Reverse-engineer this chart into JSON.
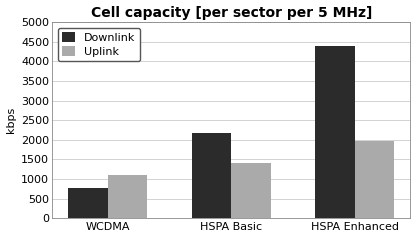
{
  "title": "Cell capacity [per sector per 5 MHz]",
  "categories": [
    "WCDMA",
    "HSPA Basic",
    "HSPA Enhanced"
  ],
  "downlink": [
    780,
    2175,
    4400
  ],
  "uplink": [
    1100,
    1400,
    1975
  ],
  "downlink_color": "#2b2b2b",
  "uplink_color": "#aaaaaa",
  "ylabel": "kbps",
  "ylim": [
    0,
    5000
  ],
  "yticks": [
    0,
    500,
    1000,
    1500,
    2000,
    2500,
    3000,
    3500,
    4000,
    4500,
    5000
  ],
  "legend_labels": [
    "Downlink",
    "Uplink"
  ],
  "bar_width": 0.32,
  "title_fontsize": 10,
  "tick_fontsize": 8,
  "ylabel_fontsize": 8,
  "legend_fontsize": 8,
  "background_color": "#ffffff"
}
